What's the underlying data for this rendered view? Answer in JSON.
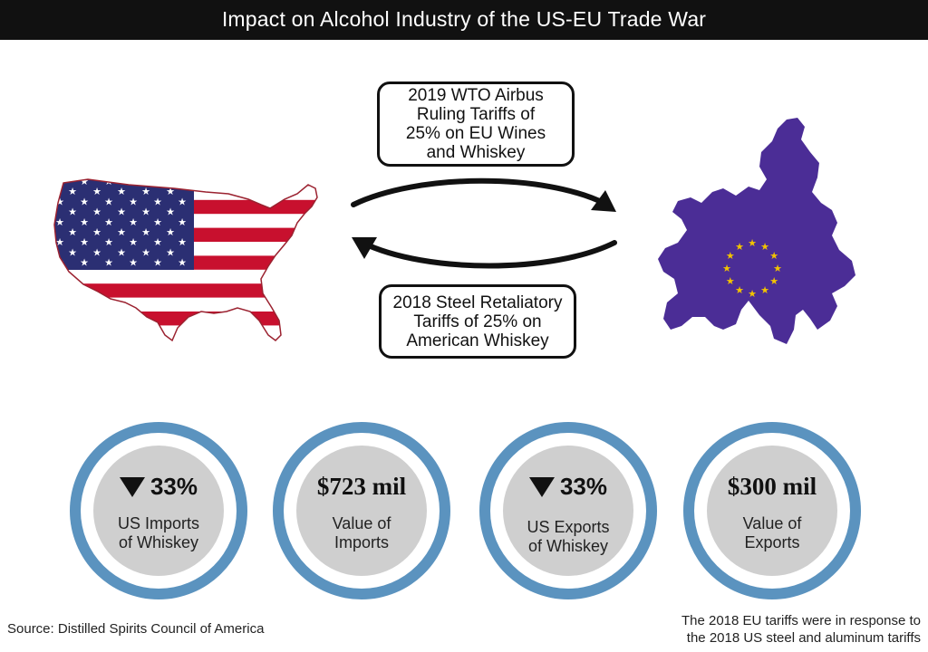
{
  "header": {
    "title": "Impact on Alcohol Industry of the US-EU Trade War"
  },
  "tariffs": {
    "top": {
      "lines": [
        "2019 WTO Airbus",
        "Ruling Tariffs of",
        "25% on EU Wines",
        "and Whiskey"
      ]
    },
    "bottom": {
      "lines": [
        "2018 Steel Retaliatory",
        "Tariffs of 25% on",
        "American Whiskey"
      ]
    }
  },
  "stats": [
    {
      "value": "33%",
      "arrow": "down",
      "label": [
        "US Imports",
        "of Whiskey"
      ]
    },
    {
      "value": "$723 mil",
      "arrow": null,
      "label": [
        "Value of",
        "Imports"
      ]
    },
    {
      "value": "33%",
      "arrow": "down",
      "label": [
        "US Exports",
        "of Whiskey"
      ]
    },
    {
      "value": "$300 mil",
      "arrow": null,
      "label": [
        "Value of",
        "Exports"
      ]
    }
  ],
  "footer": {
    "source": "Source: Distilled Spirits Council of America",
    "note": [
      "The 2018 EU tariffs were in response to",
      "the 2018 US steel and aluminum tariffs"
    ]
  },
  "colors": {
    "title_bg": "#111111",
    "ring_blue": "#5b93bf",
    "inner_gray": "#cfcfcf",
    "eu_purple": "#4b2d96",
    "eu_star": "#f2c300",
    "us_red": "#c8102e",
    "us_blue": "#2b2f73"
  },
  "icons": {
    "usa_map": "usa-flag-map-icon",
    "eu_map": "eu-flag-map-icon",
    "arrows": "cycle-arrows-icon",
    "down": "down-triangle-icon"
  }
}
